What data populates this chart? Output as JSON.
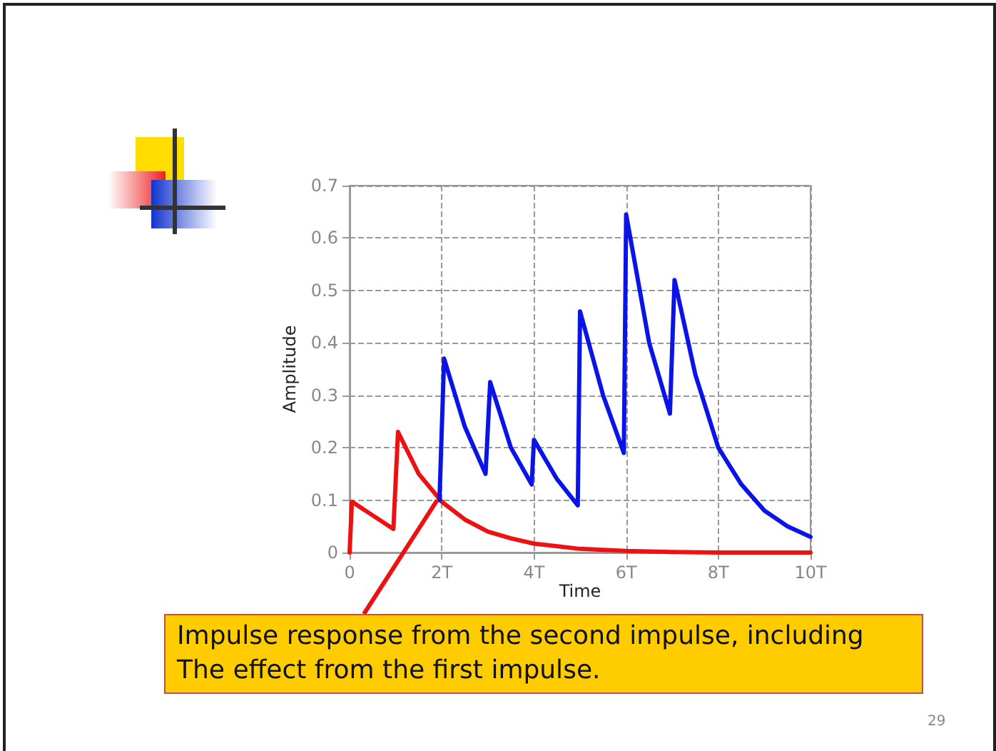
{
  "chart_data": {
    "type": "line",
    "xlabel": "Time",
    "ylabel": "Amplitude",
    "xlim": [
      0,
      10
    ],
    "xticks": [
      0,
      {
        "value": 2,
        "label": "2T"
      },
      {
        "value": 4,
        "label": "4T"
      },
      {
        "value": 6,
        "label": "6T"
      },
      {
        "value": 8,
        "label": "8T"
      },
      {
        "value": 10,
        "label": "10T"
      }
    ],
    "ylim": [
      0,
      0.7
    ],
    "yticks": [
      0,
      0.1,
      0.2,
      0.3,
      0.4,
      0.5,
      0.6,
      0.7
    ],
    "grid": true,
    "marker": "none",
    "line_style": "solid",
    "series": [
      {
        "color": "#ee1111",
        "x": [
          0,
          0.05,
          0.95,
          1.05,
          1.5,
          2,
          2.5,
          3,
          3.5,
          4,
          5,
          6,
          7,
          8,
          10
        ],
        "values": [
          0,
          0.097,
          0.045,
          0.23,
          0.15,
          0.097,
          0.063,
          0.04,
          0.027,
          0.017,
          0.007,
          0.003,
          0.001,
          0,
          0
        ]
      },
      {
        "color": "#0a14e6",
        "x": [
          1.95,
          2.05,
          2.5,
          2.95,
          3.05,
          3.5,
          3.95,
          4.0,
          4.5,
          4.95,
          5.0,
          5.5,
          5.95,
          6.0,
          6.5,
          6.95,
          7.05,
          7.5,
          8,
          8.5,
          9,
          9.5,
          10
        ],
        "values": [
          0.1,
          0.37,
          0.24,
          0.15,
          0.325,
          0.2,
          0.13,
          0.215,
          0.14,
          0.09,
          0.46,
          0.3,
          0.19,
          0.645,
          0.4,
          0.265,
          0.52,
          0.34,
          0.2,
          0.13,
          0.08,
          0.05,
          0.03
        ]
      }
    ],
    "annotations": [
      {
        "text": "Impulse response from the second impulse, including\nThe effect from the first impulse.",
        "x": 1.9,
        "y": 0.1
      },
      "29"
    ]
  }
}
